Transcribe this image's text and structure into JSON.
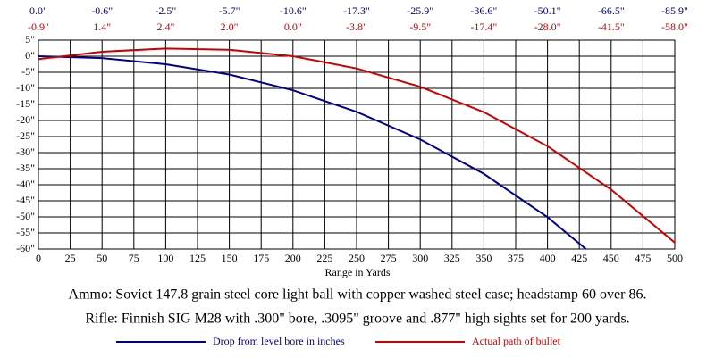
{
  "chart_data": {
    "type": "line",
    "x": [
      0,
      50,
      100,
      150,
      200,
      250,
      300,
      350,
      400,
      450,
      500
    ],
    "series": [
      {
        "name": "Drop from level bore in inches",
        "color": "#00008b",
        "values": [
          0.0,
          -0.6,
          -2.5,
          -5.7,
          -10.6,
          -17.3,
          -25.9,
          -36.6,
          -50.1,
          -66.5,
          -85.9
        ],
        "value_labels": [
          "0.0\"",
          "-0.6\"",
          "-2.5\"",
          "-5.7\"",
          "-10.6\"",
          "-17.3\"",
          "-25.9\"",
          "-36.6\"",
          "-50.1\"",
          "-66.5\"",
          "-85.9\""
        ]
      },
      {
        "name": "Actual path of bullet",
        "color": "#cc0000",
        "values": [
          -0.9,
          1.4,
          2.4,
          2.0,
          0.0,
          -3.8,
          -9.5,
          -17.4,
          -28.0,
          -41.5,
          -58.0
        ],
        "value_labels": [
          "-0.9\"",
          "1.4\"",
          "2.4\"",
          "2.0\"",
          "0.0\"",
          "-3.8\"",
          "-9.5\"",
          "-17.4\"",
          "-28.0\"",
          "-41.5\"",
          "-58.0\""
        ]
      }
    ],
    "xlabel": "Range in Yards",
    "xlim": [
      0,
      500
    ],
    "xticks": [
      0,
      25,
      50,
      75,
      100,
      125,
      150,
      175,
      200,
      225,
      250,
      275,
      300,
      325,
      350,
      375,
      400,
      425,
      450,
      475,
      500
    ],
    "ylim": [
      -60,
      5
    ],
    "yticks": [
      {
        "value": 5,
        "label": "5\""
      },
      {
        "value": 0,
        "label": "0\""
      },
      {
        "value": -5,
        "label": "-5\""
      },
      {
        "value": -10,
        "label": "-10\""
      },
      {
        "value": -15,
        "label": "-15\""
      },
      {
        "value": -20,
        "label": "-20\""
      },
      {
        "value": -25,
        "label": "-25\""
      },
      {
        "value": -30,
        "label": "-30\""
      },
      {
        "value": -35,
        "label": "-35\""
      },
      {
        "value": -40,
        "label": "-40\""
      },
      {
        "value": -45,
        "label": "-45\""
      },
      {
        "value": -50,
        "label": "-50\""
      },
      {
        "value": -55,
        "label": "-55\""
      },
      {
        "value": -60,
        "label": "-60\""
      }
    ],
    "grid": true,
    "notes": [
      "Ammo:  Soviet 147.8 grain steel core light ball with copper washed steel case; headstamp 60 over 86.",
      "Rifle:  Finnish SIG M28 with .300\" bore, .3095\" groove and .877\" high sights set for 200 yards."
    ],
    "legend": "bottom"
  }
}
